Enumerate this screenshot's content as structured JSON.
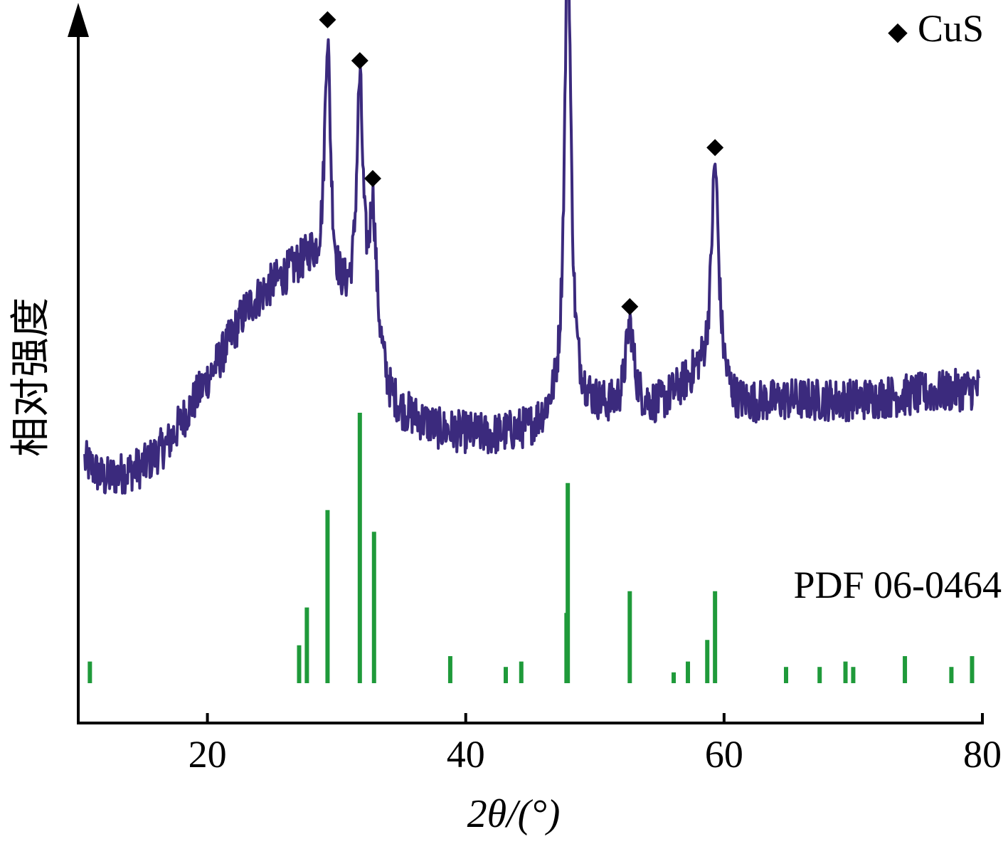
{
  "chart_data": {
    "type": "line",
    "xlabel": "2θ/(°)",
    "ylabel": "相对强度",
    "xlim": [
      10,
      80
    ],
    "x_ticks": [
      20,
      40,
      60,
      80
    ],
    "legend": {
      "marker": "◆",
      "label": "CuS",
      "placement": "top-right"
    },
    "reference_label": "PDF 06-0464",
    "colors": {
      "pattern": "#3b2a7d",
      "reference": "#1f9a3a",
      "axis": "#000000"
    },
    "pattern": {
      "name": "",
      "baseline": [
        {
          "x": 10.5,
          "y": 0.15
        },
        {
          "x": 12,
          "y": 0.12
        },
        {
          "x": 15,
          "y": 0.14
        },
        {
          "x": 17,
          "y": 0.18
        },
        {
          "x": 19,
          "y": 0.25
        },
        {
          "x": 21,
          "y": 0.32
        },
        {
          "x": 23,
          "y": 0.4
        },
        {
          "x": 25,
          "y": 0.44
        },
        {
          "x": 27,
          "y": 0.47
        },
        {
          "x": 28,
          "y": 0.48
        },
        {
          "x": 29,
          "y": 0.44
        },
        {
          "x": 31,
          "y": 0.4
        },
        {
          "x": 33,
          "y": 0.36
        },
        {
          "x": 34,
          "y": 0.26
        },
        {
          "x": 35,
          "y": 0.23
        },
        {
          "x": 38,
          "y": 0.2
        },
        {
          "x": 42,
          "y": 0.19
        },
        {
          "x": 45,
          "y": 0.2
        },
        {
          "x": 46.5,
          "y": 0.22
        },
        {
          "x": 49,
          "y": 0.24
        },
        {
          "x": 52,
          "y": 0.23
        },
        {
          "x": 55,
          "y": 0.24
        },
        {
          "x": 58,
          "y": 0.29
        },
        {
          "x": 61,
          "y": 0.24
        },
        {
          "x": 65,
          "y": 0.25
        },
        {
          "x": 70,
          "y": 0.25
        },
        {
          "x": 75,
          "y": 0.26
        },
        {
          "x": 79.8,
          "y": 0.27
        }
      ],
      "peaks": [
        {
          "x": 29.3,
          "height": 0.41,
          "width": 0.28
        },
        {
          "x": 31.8,
          "height": 0.38,
          "width": 0.3
        },
        {
          "x": 32.8,
          "height": 0.19,
          "width": 0.28
        },
        {
          "x": 47.9,
          "height": 0.79,
          "width": 0.3
        },
        {
          "x": 52.7,
          "height": 0.14,
          "width": 0.4
        },
        {
          "x": 59.3,
          "height": 0.37,
          "width": 0.35
        }
      ],
      "noise_amplitude": 0.035
    },
    "markers": [
      29.3,
      31.8,
      32.8,
      47.9,
      52.7,
      59.3
    ],
    "reference_lines": [
      {
        "x": 10.9,
        "intensity": 4
      },
      {
        "x": 27.1,
        "intensity": 7
      },
      {
        "x": 27.7,
        "intensity": 14
      },
      {
        "x": 29.3,
        "intensity": 32
      },
      {
        "x": 31.8,
        "intensity": 50
      },
      {
        "x": 32.9,
        "intensity": 28
      },
      {
        "x": 38.8,
        "intensity": 5
      },
      {
        "x": 43.1,
        "intensity": 3
      },
      {
        "x": 44.3,
        "intensity": 4
      },
      {
        "x": 47.8,
        "intensity": 13
      },
      {
        "x": 47.9,
        "intensity": 37
      },
      {
        "x": 52.7,
        "intensity": 17
      },
      {
        "x": 56.1,
        "intensity": 2
      },
      {
        "x": 57.2,
        "intensity": 4
      },
      {
        "x": 58.7,
        "intensity": 8
      },
      {
        "x": 59.3,
        "intensity": 17
      },
      {
        "x": 64.8,
        "intensity": 3
      },
      {
        "x": 67.4,
        "intensity": 3
      },
      {
        "x": 69.4,
        "intensity": 4
      },
      {
        "x": 70.0,
        "intensity": 3
      },
      {
        "x": 74.0,
        "intensity": 5
      },
      {
        "x": 77.6,
        "intensity": 3
      },
      {
        "x": 79.2,
        "intensity": 5
      }
    ]
  }
}
